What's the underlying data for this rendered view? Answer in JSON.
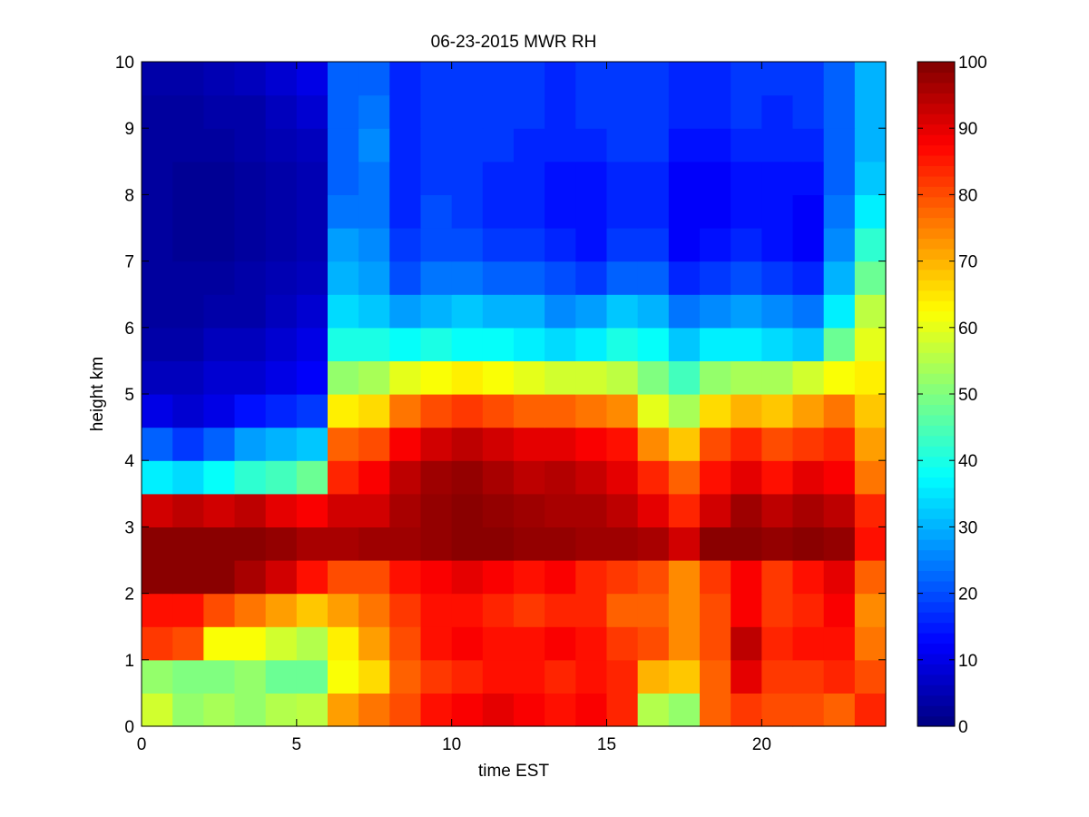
{
  "chart_data": {
    "type": "heatmap",
    "title": "06-23-2015 MWR RH",
    "xlabel": "time EST",
    "ylabel": "height km",
    "xlim": [
      0,
      24
    ],
    "ylim": [
      0,
      10
    ],
    "x_ticks": [
      0,
      5,
      10,
      15,
      20
    ],
    "y_ticks": [
      0,
      1,
      2,
      3,
      4,
      5,
      6,
      7,
      8,
      9,
      10
    ],
    "colorbar": {
      "colormap": "jet",
      "range": [
        0,
        100
      ],
      "ticks": [
        0,
        10,
        20,
        30,
        40,
        50,
        60,
        70,
        80,
        90,
        100
      ]
    },
    "x": [
      0.0,
      1.0,
      2.0,
      3.0,
      4.0,
      5.0,
      6.0,
      7.0,
      8.0,
      9.0,
      10.0,
      11.0,
      12.0,
      13.0,
      14.0,
      15.0,
      16.0,
      17.0,
      18.0,
      19.0,
      20.0,
      21.0,
      22.0,
      23.0
    ],
    "y": [
      0.0,
      0.5,
      1.0,
      1.5,
      2.0,
      2.5,
      3.0,
      3.5,
      4.0,
      4.5,
      5.0,
      5.5,
      6.0,
      6.5,
      7.0,
      7.5,
      8.0,
      8.5,
      9.0,
      9.5
    ],
    "z": [
      [
        58,
        52,
        54,
        52,
        55,
        56,
        72,
        76,
        80,
        86,
        88,
        90,
        88,
        86,
        88,
        84,
        55,
        52,
        78,
        82,
        80,
        80,
        78,
        84
      ],
      [
        52,
        50,
        50,
        52,
        48,
        48,
        62,
        66,
        78,
        82,
        84,
        86,
        86,
        84,
        86,
        84,
        70,
        68,
        78,
        90,
        82,
        82,
        84,
        80
      ],
      [
        82,
        80,
        62,
        62,
        58,
        55,
        64,
        72,
        80,
        86,
        88,
        86,
        86,
        88,
        86,
        82,
        80,
        74,
        80,
        94,
        84,
        86,
        86,
        76
      ],
      [
        86,
        86,
        80,
        76,
        72,
        68,
        72,
        76,
        82,
        86,
        86,
        84,
        82,
        84,
        84,
        78,
        78,
        74,
        80,
        88,
        82,
        84,
        88,
        74
      ],
      [
        99,
        99,
        99,
        96,
        92,
        86,
        80,
        80,
        86,
        88,
        90,
        88,
        86,
        88,
        84,
        82,
        80,
        74,
        82,
        88,
        82,
        86,
        90,
        78
      ],
      [
        99,
        99,
        99,
        99,
        98,
        96,
        96,
        97,
        97,
        98,
        99,
        99,
        98,
        98,
        97,
        97,
        96,
        92,
        99,
        99,
        98,
        99,
        98,
        86
      ],
      [
        92,
        94,
        92,
        94,
        90,
        88,
        92,
        92,
        96,
        98,
        99,
        98,
        97,
        96,
        96,
        94,
        90,
        84,
        92,
        97,
        94,
        96,
        94,
        84
      ],
      [
        36,
        34,
        38,
        42,
        44,
        48,
        84,
        88,
        94,
        97,
        98,
        96,
        94,
        95,
        93,
        90,
        84,
        78,
        86,
        90,
        86,
        90,
        88,
        76
      ],
      [
        22,
        18,
        22,
        28,
        30,
        32,
        78,
        80,
        88,
        92,
        94,
        92,
        90,
        90,
        88,
        86,
        74,
        68,
        80,
        84,
        80,
        82,
        84,
        72
      ],
      [
        10,
        8,
        10,
        14,
        16,
        18,
        64,
        66,
        76,
        80,
        82,
        80,
        78,
        78,
        76,
        74,
        60,
        54,
        66,
        70,
        68,
        72,
        76,
        68
      ],
      [
        6,
        6,
        8,
        8,
        10,
        12,
        52,
        54,
        60,
        62,
        64,
        62,
        60,
        58,
        58,
        56,
        50,
        44,
        52,
        54,
        54,
        58,
        62,
        64
      ],
      [
        4,
        4,
        6,
        6,
        8,
        10,
        40,
        40,
        38,
        40,
        38,
        38,
        36,
        34,
        36,
        40,
        38,
        32,
        36,
        36,
        34,
        32,
        48,
        60
      ],
      [
        3,
        3,
        4,
        4,
        6,
        8,
        34,
        32,
        28,
        30,
        32,
        30,
        30,
        26,
        28,
        32,
        30,
        24,
        26,
        28,
        26,
        24,
        36,
        56
      ],
      [
        3,
        3,
        3,
        4,
        5,
        6,
        30,
        28,
        20,
        24,
        24,
        22,
        22,
        20,
        18,
        22,
        22,
        16,
        18,
        20,
        18,
        16,
        30,
        48
      ],
      [
        3,
        2,
        2,
        3,
        4,
        5,
        28,
        26,
        18,
        20,
        20,
        18,
        18,
        16,
        14,
        18,
        18,
        12,
        14,
        16,
        14,
        12,
        26,
        42
      ],
      [
        3,
        2,
        2,
        3,
        4,
        5,
        24,
        24,
        16,
        20,
        18,
        16,
        16,
        14,
        14,
        16,
        16,
        12,
        12,
        14,
        14,
        12,
        24,
        36
      ],
      [
        3,
        2,
        2,
        3,
        4,
        5,
        22,
        24,
        16,
        18,
        18,
        16,
        16,
        14,
        14,
        16,
        16,
        12,
        12,
        14,
        14,
        14,
        22,
        32
      ],
      [
        3,
        3,
        3,
        4,
        5,
        6,
        22,
        26,
        16,
        18,
        18,
        18,
        16,
        16,
        16,
        18,
        18,
        14,
        14,
        16,
        16,
        16,
        22,
        30
      ],
      [
        3,
        3,
        4,
        4,
        6,
        8,
        22,
        24,
        16,
        18,
        18,
        18,
        18,
        16,
        18,
        18,
        18,
        16,
        16,
        18,
        16,
        18,
        22,
        30
      ],
      [
        4,
        4,
        5,
        6,
        8,
        10,
        22,
        22,
        16,
        18,
        18,
        18,
        18,
        16,
        18,
        18,
        18,
        16,
        16,
        18,
        18,
        18,
        22,
        30
      ]
    ]
  }
}
